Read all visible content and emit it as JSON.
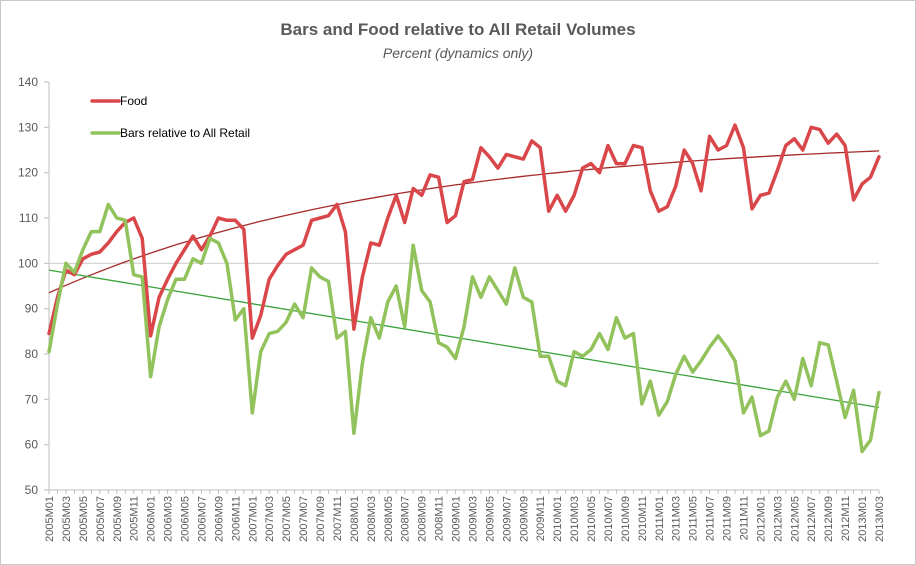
{
  "chart_data": {
    "type": "line",
    "title": "Bars and Food relative to All Retail Volumes",
    "subtitle": "Percent (dynamics only)",
    "xlabel": "",
    "ylabel": "",
    "ylim": [
      50,
      140
    ],
    "yticks": [
      50,
      60,
      70,
      80,
      90,
      100,
      110,
      120,
      130,
      140
    ],
    "reference_line": 100,
    "legend_position": "top-left",
    "x": [
      "2005M01",
      "2005M02",
      "2005M03",
      "2005M04",
      "2005M05",
      "2005M06",
      "2005M07",
      "2005M08",
      "2005M09",
      "2005M10",
      "2005M11",
      "2005M12",
      "2006M01",
      "2006M02",
      "2006M03",
      "2006M04",
      "2006M05",
      "2006M06",
      "2006M07",
      "2006M08",
      "2006M09",
      "2006M10",
      "2006M11",
      "2006M12",
      "2007M01",
      "2007M02",
      "2007M03",
      "2007M04",
      "2007M05",
      "2007M06",
      "2007M07",
      "2007M08",
      "2007M09",
      "2007M10",
      "2007M11",
      "2007M12",
      "2008M01",
      "2008M02",
      "2008M03",
      "2008M04",
      "2008M05",
      "2008M06",
      "2008M07",
      "2008M08",
      "2008M09",
      "2008M10",
      "2008M11",
      "2008M12",
      "2009M01",
      "2009M02",
      "2009M03",
      "2009M04",
      "2009M05",
      "2009M06",
      "2009M07",
      "2009M08",
      "2009M09",
      "2009M10",
      "2009M11",
      "2009M12",
      "2010M01",
      "2010M02",
      "2010M03",
      "2010M04",
      "2010M05",
      "2010M06",
      "2010M07",
      "2010M08",
      "2010M09",
      "2010M10",
      "2010M11",
      "2010M12",
      "2011M01",
      "2011M02",
      "2011M03",
      "2011M04",
      "2011M05",
      "2011M06",
      "2011M07",
      "2011M08",
      "2011M09",
      "2011M10",
      "2011M11",
      "2011M12",
      "2012M01",
      "2012M02",
      "2012M03",
      "2012M04",
      "2012M05",
      "2012M06",
      "2012M07",
      "2012M08",
      "2012M09",
      "2012M10",
      "2012M11",
      "2012M12",
      "2013M01",
      "2013M02",
      "2013M03"
    ],
    "xtick_labels": [
      "2005M01",
      "2005M03",
      "2005M05",
      "2005M07",
      "2005M09",
      "2005M11",
      "2006M01",
      "2006M03",
      "2006M05",
      "2006M07",
      "2006M09",
      "2006M11",
      "2007M01",
      "2007M03",
      "2007M05",
      "2007M07",
      "2007M09",
      "2007M11",
      "2008M01",
      "2008M03",
      "2008M05",
      "2008M07",
      "2008M09",
      "2008M11",
      "2009M01",
      "2009M03",
      "2009M05",
      "2009M07",
      "2009M09",
      "2009M11",
      "2010M01",
      "2010M03",
      "2010M05",
      "2010M07",
      "2010M09",
      "2010M11",
      "2011M01",
      "2011M03",
      "2011M05",
      "2011M07",
      "2011M09",
      "2011M11",
      "2012M01",
      "2012M03",
      "2012M05",
      "2012M07",
      "2012M09",
      "2012M11",
      "2013M01",
      "2013M03"
    ],
    "series": [
      {
        "name": "Food",
        "color": "#d9474a",
        "trend_color": "#a52a2a",
        "trend_type": "polynomial",
        "trend_values": [
          93.5,
          124.8
        ],
        "values": [
          84.5,
          92.5,
          98.5,
          97.5,
          101,
          102,
          102.5,
          104.5,
          107,
          109,
          110,
          105.5,
          84,
          92.5,
          96.5,
          100,
          103,
          106,
          103,
          106,
          110,
          109.5,
          109.5,
          107.5,
          83.5,
          88.5,
          96.5,
          99.5,
          102,
          103,
          104,
          109.5,
          110,
          110.5,
          113,
          107,
          85.5,
          97,
          104.5,
          104,
          110,
          115,
          109,
          116.5,
          115,
          119.5,
          119,
          109,
          110.5,
          118,
          118.5,
          125.5,
          123.5,
          121,
          124,
          123.5,
          123,
          127,
          125.5,
          111.5,
          115,
          111.5,
          115,
          121,
          122,
          120,
          126,
          122,
          122,
          126,
          125.5,
          116,
          111.5,
          112.5,
          117,
          125,
          122,
          116,
          128,
          125,
          126,
          130.5,
          125.5,
          112,
          115,
          115.5,
          120.5,
          126,
          127.5,
          125,
          130,
          129.5,
          126.5,
          128.5,
          126,
          114,
          117.5,
          119,
          123.5
        ]
      },
      {
        "name": "Bars relative to All Retail",
        "color": "#92c25c",
        "trend_color": "#3aa23a",
        "trend_type": "linear",
        "trend_values": [
          98.5,
          68.2
        ],
        "values": [
          80.5,
          91,
          100,
          98,
          103,
          107,
          107,
          113,
          110,
          109.5,
          97.5,
          97,
          75,
          86,
          92,
          96.5,
          96.5,
          101,
          100,
          105.5,
          104.5,
          100,
          87.5,
          90,
          67,
          80.5,
          84.5,
          85,
          87,
          91,
          88,
          99,
          97,
          96,
          83.5,
          85,
          62.5,
          78,
          88,
          83.5,
          91.5,
          95,
          86,
          104,
          94,
          91.5,
          82.5,
          81.5,
          79,
          86,
          97,
          92.5,
          97,
          94,
          91,
          99,
          92.5,
          91.5,
          79.5,
          79.5,
          74,
          73,
          80.5,
          79.5,
          81,
          84.5,
          81,
          88,
          83.5,
          84.5,
          69,
          74,
          66.5,
          69.5,
          75.5,
          79.5,
          76,
          78.5,
          81.5,
          84,
          81.5,
          78.5,
          67,
          70.5,
          62,
          63,
          70.5,
          74,
          70,
          79,
          73,
          82.5,
          82,
          74,
          66,
          72,
          58.5,
          61,
          71.5
        ]
      }
    ]
  }
}
